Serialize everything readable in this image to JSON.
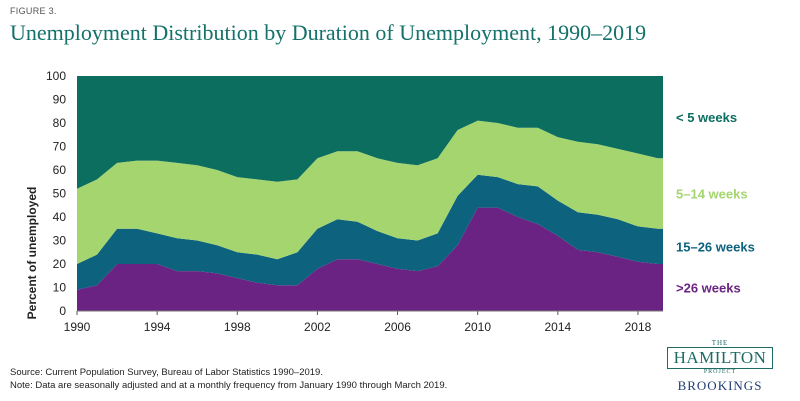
{
  "figure_label": "FIGURE 3.",
  "title": "Unemployment Distribution by Duration of Unemployment, 1990–2019",
  "source_lines": [
    "Source: Current Population Survey, Bureau of Labor Statistics 1990–2019.",
    "Note: Data are seasonally adjusted and at a monthly frequency from January 1990 through March 2019."
  ],
  "logo": {
    "the": "THE",
    "hamilton": "HAMILTON",
    "project": "PROJECT",
    "brookings": "BROOKINGS"
  },
  "colors": {
    "lt5": "#0b6e5f",
    "w5_14": "#a5d56f",
    "w15_26": "#0d627d",
    "gt26": "#6a2382"
  },
  "chart_data": {
    "type": "area",
    "stacked": true,
    "ylabel": "Percent of unemployed",
    "xlim": [
      1990,
      2019.25
    ],
    "ylim": [
      0,
      100
    ],
    "yticks": [
      0,
      10,
      20,
      30,
      40,
      50,
      60,
      70,
      80,
      90,
      100
    ],
    "xticks": [
      1990,
      1994,
      1998,
      2002,
      2006,
      2010,
      2014,
      2018
    ],
    "x": [
      1990,
      1991,
      1992,
      1993,
      1994,
      1995,
      1996,
      1997,
      1998,
      1999,
      2000,
      2001,
      2002,
      2003,
      2004,
      2005,
      2006,
      2007,
      2008,
      2009,
      2010,
      2011,
      2012,
      2013,
      2014,
      2015,
      2016,
      2017,
      2018,
      2019
    ],
    "series": [
      {
        "name": ">26 weeks",
        "color": "#6a2382",
        "values": [
          9,
          11,
          20,
          20,
          20,
          17,
          17,
          16,
          14,
          12,
          11,
          11,
          18,
          22,
          22,
          20,
          18,
          17,
          19,
          28,
          44,
          44,
          40,
          37,
          32,
          26,
          25,
          23,
          21,
          20
        ]
      },
      {
        "name": "15–26 weeks",
        "color": "#0d627d",
        "values": [
          11,
          13,
          15,
          15,
          13,
          14,
          13,
          12,
          11,
          12,
          11,
          14,
          17,
          17,
          16,
          14,
          13,
          13,
          14,
          21,
          14,
          13,
          14,
          16,
          15,
          16,
          16,
          16,
          15,
          15
        ]
      },
      {
        "name": "5–14 weeks",
        "color": "#a5d56f",
        "values": [
          32,
          32,
          28,
          29,
          31,
          32,
          32,
          32,
          32,
          32,
          33,
          31,
          30,
          29,
          30,
          31,
          32,
          32,
          32,
          28,
          23,
          23,
          24,
          25,
          27,
          30,
          30,
          30,
          31,
          30
        ]
      },
      {
        "name": "< 5 weeks",
        "color": "#0b6e5f",
        "values": [
          48,
          44,
          37,
          36,
          36,
          37,
          38,
          40,
          43,
          44,
          45,
          44,
          35,
          32,
          32,
          35,
          37,
          38,
          35,
          23,
          19,
          20,
          22,
          22,
          26,
          28,
          29,
          31,
          33,
          35
        ]
      }
    ]
  }
}
